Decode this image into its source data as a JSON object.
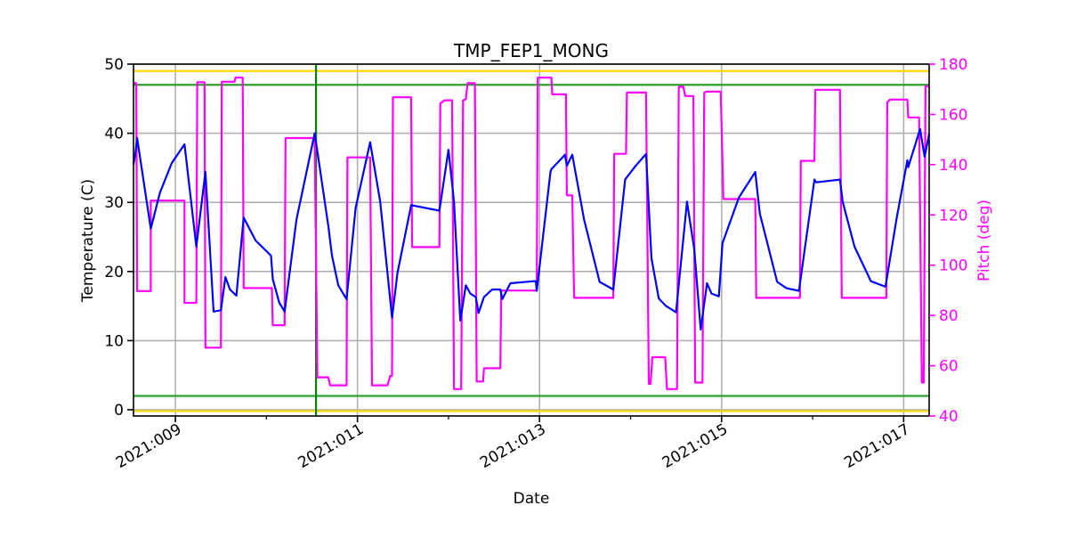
{
  "chart_data": {
    "type": "line",
    "title": "TMP_FEP1_MONG",
    "xlabel": "Date",
    "ylabel": "Temperature (C)",
    "ylabel_right": "Pitch (deg)",
    "xlim": [
      8.54,
      17.28
    ],
    "ylim": [
      -0.9,
      50
    ],
    "ylim_right": [
      40,
      180
    ],
    "grid": true,
    "x_ticks": [
      {
        "value": 9,
        "label": "2021:009"
      },
      {
        "value": 11,
        "label": "2021:011"
      },
      {
        "value": 13,
        "label": "2021:013"
      },
      {
        "value": 15,
        "label": "2021:015"
      },
      {
        "value": 17,
        "label": "2021:017"
      }
    ],
    "x_minor_ticks": [
      10,
      12,
      14,
      16
    ],
    "y_ticks": [
      0,
      10,
      20,
      30,
      40,
      50
    ],
    "y_ticks_right": [
      40,
      60,
      80,
      100,
      120,
      140,
      160,
      180
    ],
    "colors": {
      "temperature": "#0000ff",
      "pitch": "#ff00ff",
      "limit_yellow": "#ffd700",
      "limit_green": "#2ca02c",
      "marker_green": "#008000",
      "grid": "#b0b0b0"
    },
    "hlines": [
      {
        "y": 49,
        "color": "#ffd700"
      },
      {
        "y": 47,
        "color": "#2ca02c"
      },
      {
        "y": 2,
        "color": "#2ca02c"
      },
      {
        "y": -0.2,
        "color": "#ffd700"
      }
    ],
    "vline": {
      "x": 10.545,
      "color": "#008000"
    },
    "series": [
      {
        "name": "Temperature",
        "axis": "left",
        "color": "#0000ff",
        "points": [
          [
            8.54,
            35.5
          ],
          [
            8.56,
            37.0
          ],
          [
            8.58,
            39.3
          ],
          [
            8.73,
            26.2
          ],
          [
            8.83,
            31.4
          ],
          [
            8.96,
            35.7
          ],
          [
            9.1,
            38.4
          ],
          [
            9.23,
            23.6
          ],
          [
            9.33,
            34.4
          ],
          [
            9.42,
            14.2
          ],
          [
            9.5,
            14.4
          ],
          [
            9.55,
            19.2
          ],
          [
            9.6,
            17.4
          ],
          [
            9.67,
            16.5
          ],
          [
            9.75,
            27.8
          ],
          [
            9.88,
            24.5
          ],
          [
            10.05,
            22.3
          ],
          [
            10.07,
            18.9
          ],
          [
            10.14,
            15.5
          ],
          [
            10.2,
            14.2
          ],
          [
            10.33,
            27.5
          ],
          [
            10.53,
            40.0
          ],
          [
            10.68,
            26.6
          ],
          [
            10.72,
            22.3
          ],
          [
            10.79,
            18.0
          ],
          [
            10.88,
            16.0
          ],
          [
            10.98,
            29.2
          ],
          [
            11.14,
            38.7
          ],
          [
            11.25,
            30.1
          ],
          [
            11.38,
            13.3
          ],
          [
            11.44,
            19.8
          ],
          [
            11.59,
            29.6
          ],
          [
            11.9,
            28.8
          ],
          [
            12.0,
            37.6
          ],
          [
            12.06,
            30.1
          ],
          [
            12.13,
            12.9
          ],
          [
            12.19,
            18.0
          ],
          [
            12.24,
            16.8
          ],
          [
            12.3,
            16.3
          ],
          [
            12.33,
            14.0
          ],
          [
            12.39,
            16.3
          ],
          [
            12.48,
            17.4
          ],
          [
            12.57,
            17.4
          ],
          [
            12.59,
            16.0
          ],
          [
            12.68,
            18.3
          ],
          [
            12.94,
            18.6
          ],
          [
            12.96,
            18.6
          ],
          [
            12.97,
            17.2
          ],
          [
            13.12,
            34.4
          ],
          [
            13.13,
            34.8
          ],
          [
            13.28,
            36.9
          ],
          [
            13.3,
            35.3
          ],
          [
            13.36,
            36.9
          ],
          [
            13.49,
            27.5
          ],
          [
            13.66,
            18.5
          ],
          [
            13.81,
            17.4
          ],
          [
            13.94,
            33.3
          ],
          [
            14.05,
            35.2
          ],
          [
            14.17,
            37.0
          ],
          [
            14.23,
            21.9
          ],
          [
            14.31,
            16.1
          ],
          [
            14.39,
            15.0
          ],
          [
            14.5,
            14.1
          ],
          [
            14.62,
            30.1
          ],
          [
            14.7,
            23.2
          ],
          [
            14.77,
            11.6
          ],
          [
            14.84,
            18.3
          ],
          [
            14.89,
            16.8
          ],
          [
            14.97,
            16.4
          ],
          [
            15.01,
            24.1
          ],
          [
            15.19,
            30.7
          ],
          [
            15.37,
            34.4
          ],
          [
            15.42,
            28.4
          ],
          [
            15.61,
            18.5
          ],
          [
            15.71,
            17.6
          ],
          [
            15.85,
            17.2
          ],
          [
            16.02,
            33.3
          ],
          [
            16.04,
            32.9
          ],
          [
            16.3,
            33.3
          ],
          [
            16.33,
            30.1
          ],
          [
            16.46,
            23.6
          ],
          [
            16.64,
            18.6
          ],
          [
            16.8,
            17.8
          ],
          [
            16.92,
            27.5
          ],
          [
            17.04,
            36.1
          ],
          [
            17.05,
            35.1
          ],
          [
            17.18,
            40.6
          ],
          [
            17.23,
            36.6
          ],
          [
            17.28,
            39.9
          ]
        ]
      },
      {
        "name": "Pitch",
        "axis": "right",
        "color": "#ff00ff",
        "points": [
          [
            8.54,
            172.4
          ],
          [
            8.57,
            172.4
          ],
          [
            8.58,
            89.7
          ],
          [
            8.73,
            89.7
          ],
          [
            8.73,
            125.7
          ],
          [
            9.1,
            125.7
          ],
          [
            9.1,
            85.0
          ],
          [
            9.23,
            85.0
          ],
          [
            9.24,
            172.8
          ],
          [
            9.32,
            172.8
          ],
          [
            9.33,
            67.2
          ],
          [
            9.5,
            67.2
          ],
          [
            9.51,
            173.0
          ],
          [
            9.65,
            173.0
          ],
          [
            9.66,
            174.6
          ],
          [
            9.74,
            174.6
          ],
          [
            9.75,
            90.9
          ],
          [
            10.06,
            90.9
          ],
          [
            10.07,
            76.1
          ],
          [
            10.2,
            76.1
          ],
          [
            10.21,
            150.6
          ],
          [
            10.53,
            150.6
          ],
          [
            10.56,
            55.4
          ],
          [
            10.68,
            55.4
          ],
          [
            10.7,
            52.2
          ],
          [
            10.88,
            52.2
          ],
          [
            10.89,
            142.9
          ],
          [
            11.14,
            142.9
          ],
          [
            11.16,
            52.2
          ],
          [
            11.33,
            52.2
          ],
          [
            11.36,
            56.0
          ],
          [
            11.38,
            56.0
          ],
          [
            11.39,
            166.8
          ],
          [
            11.59,
            166.8
          ],
          [
            11.6,
            107.2
          ],
          [
            11.9,
            107.2
          ],
          [
            11.91,
            164.4
          ],
          [
            11.96,
            165.6
          ],
          [
            12.04,
            165.6
          ],
          [
            12.06,
            50.7
          ],
          [
            12.14,
            50.7
          ],
          [
            12.16,
            165.6
          ],
          [
            12.19,
            166.0
          ],
          [
            12.21,
            172.4
          ],
          [
            12.29,
            172.4
          ],
          [
            12.31,
            53.7
          ],
          [
            12.38,
            53.7
          ],
          [
            12.39,
            59.0
          ],
          [
            12.57,
            59.0
          ],
          [
            12.58,
            89.9
          ],
          [
            12.97,
            89.9
          ],
          [
            12.98,
            174.6
          ],
          [
            13.13,
            174.6
          ],
          [
            13.14,
            168.0
          ],
          [
            13.29,
            168.0
          ],
          [
            13.3,
            127.8
          ],
          [
            13.36,
            127.8
          ],
          [
            13.38,
            87.0
          ],
          [
            13.81,
            87.0
          ],
          [
            13.82,
            144.3
          ],
          [
            13.95,
            144.3
          ],
          [
            13.96,
            168.7
          ],
          [
            14.17,
            168.7
          ],
          [
            14.2,
            52.8
          ],
          [
            14.22,
            52.8
          ],
          [
            14.24,
            63.4
          ],
          [
            14.38,
            63.4
          ],
          [
            14.4,
            50.7
          ],
          [
            14.51,
            50.7
          ],
          [
            14.53,
            171.0
          ],
          [
            14.58,
            171.0
          ],
          [
            14.6,
            167.3
          ],
          [
            14.69,
            167.3
          ],
          [
            14.71,
            53.3
          ],
          [
            14.79,
            53.3
          ],
          [
            14.81,
            168.7
          ],
          [
            14.84,
            169.1
          ],
          [
            14.99,
            169.1
          ],
          [
            15.02,
            126.3
          ],
          [
            15.37,
            126.3
          ],
          [
            15.38,
            87.0
          ],
          [
            15.86,
            87.0
          ],
          [
            15.87,
            141.5
          ],
          [
            16.02,
            141.5
          ],
          [
            16.03,
            169.8
          ],
          [
            16.3,
            169.8
          ],
          [
            16.32,
            87.0
          ],
          [
            16.81,
            87.0
          ],
          [
            16.82,
            164.8
          ],
          [
            16.85,
            165.9
          ],
          [
            17.04,
            165.9
          ],
          [
            17.05,
            158.8
          ],
          [
            17.17,
            158.8
          ],
          [
            17.2,
            53.3
          ],
          [
            17.22,
            53.3
          ],
          [
            17.24,
            171.2
          ],
          [
            17.28,
            171.2
          ]
        ]
      }
    ]
  }
}
